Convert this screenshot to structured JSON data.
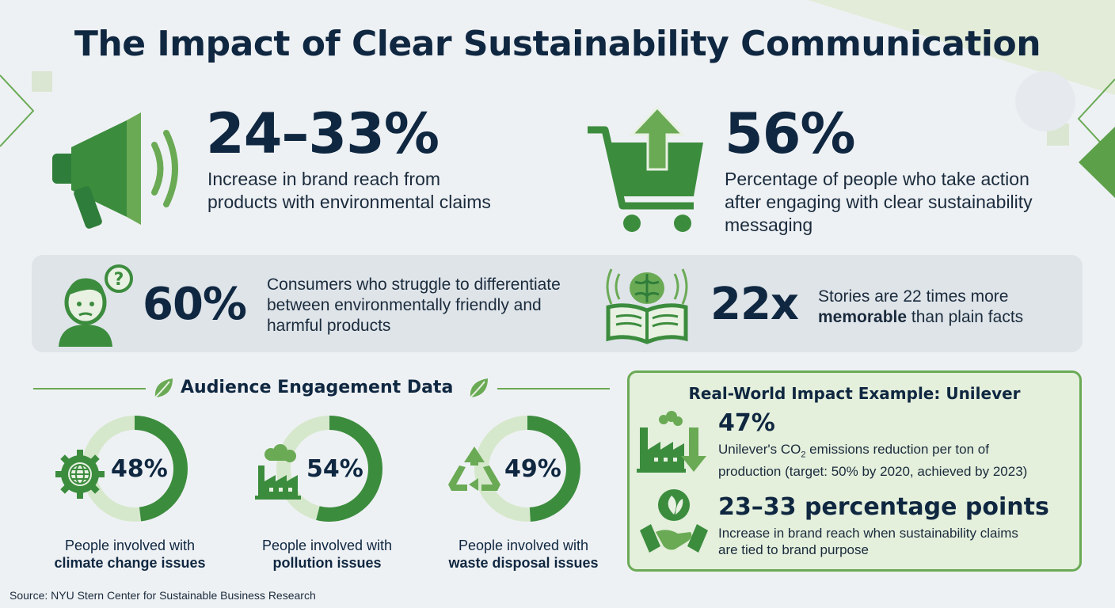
{
  "title": "The Impact of Clear Sustainability Communication",
  "stats_top": [
    {
      "value": "24–33%",
      "description": "Increase in brand reach from products with environmental claims",
      "icon": "megaphone-icon"
    },
    {
      "value": "56%",
      "description": "Percentage of people who take action after engaging with clear sustainability messaging",
      "icon": "shopping-cart-icon"
    }
  ],
  "band": [
    {
      "value": "60%",
      "description": "Consumers who struggle to differentiate between environmentally friendly and harmful products",
      "icon": "confused-person-icon"
    },
    {
      "value": "22x",
      "description_pre": "Stories are 22 times more",
      "description_bold": "memorable",
      "description_post": "than plain facts",
      "icon": "book-brain-icon"
    }
  ],
  "audience": {
    "heading": "Audience Engagement Data",
    "items": [
      {
        "percent": 48,
        "label": "48%",
        "line1": "People involved with",
        "line2": "climate change issues",
        "icon": "globe-gear-icon"
      },
      {
        "percent": 54,
        "label": "54%",
        "line1": "People involved with",
        "line2": "pollution issues",
        "icon": "factory-smoke-icon"
      },
      {
        "percent": 49,
        "label": "49%",
        "line1": "People involved with",
        "line2": "waste disposal issues",
        "icon": "recycle-icon"
      }
    ]
  },
  "unilever": {
    "heading": "Real-World Impact Example: Unilever",
    "stat1": "47%",
    "desc1_line1_pre": "Unilever's CO",
    "desc1_sub": "2",
    "desc1_line1_post": " emissions reduction per ton of",
    "desc1_line2": "production (target: 50% by 2020, achieved by 2023)",
    "stat2": "23–33 percentage points",
    "desc2_line1": "Increase in brand reach when sustainability claims",
    "desc2_line2": "are tied to brand purpose"
  },
  "source": "Source: NYU Stern Center for Sustainable Business Research",
  "colors": {
    "dark_green": "#3c8c3e",
    "mid_green": "#6aaa55",
    "light_green": "#d6e8cc",
    "navy": "#0f2740"
  }
}
